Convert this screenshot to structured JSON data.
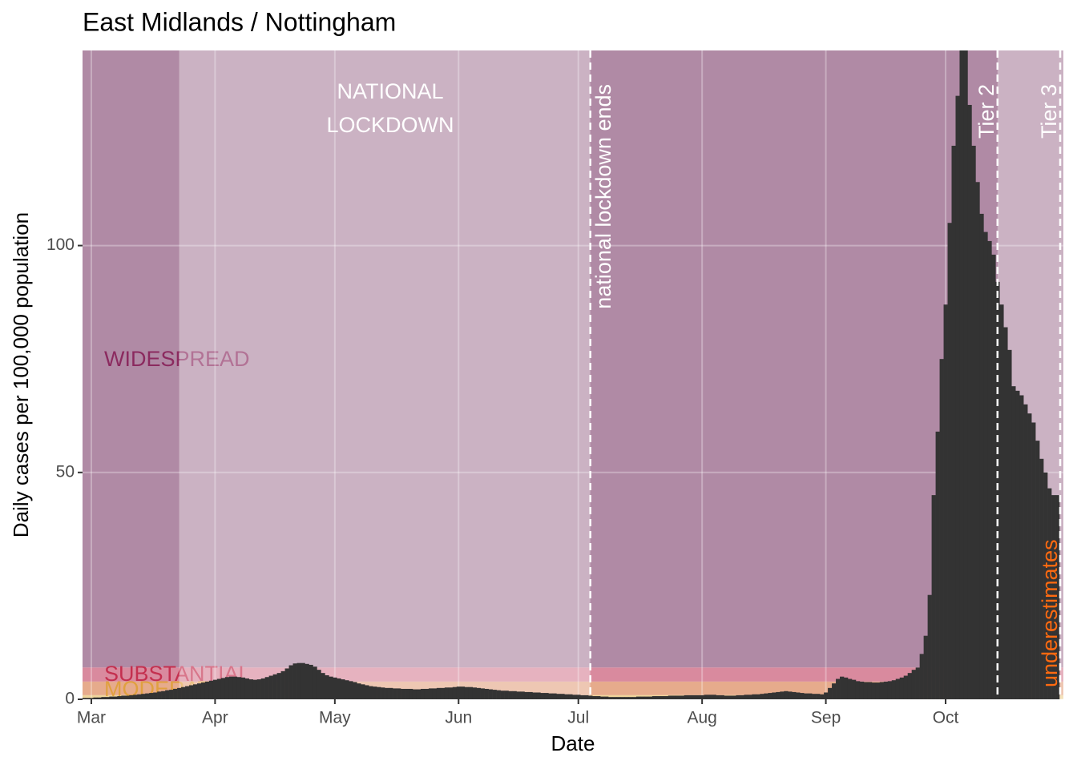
{
  "chart_data": {
    "type": "bar",
    "title": "East Midlands / Nottingham",
    "x_label": "Date",
    "y_label": "Daily cases per 100,000 population",
    "color": "#333333",
    "xlim": [
      -2.2,
      243.5
    ],
    "ylim": [
      0,
      143
    ],
    "yticks": [
      0,
      50,
      100
    ],
    "xticks": [
      {
        "value": 0,
        "label": "Mar"
      },
      {
        "value": 31,
        "label": "Apr"
      },
      {
        "value": 61,
        "label": "May"
      },
      {
        "value": 92,
        "label": "Jun"
      },
      {
        "value": 122,
        "label": "Jul"
      },
      {
        "value": 153,
        "label": "Aug"
      },
      {
        "value": 184,
        "label": "Sep"
      },
      {
        "value": 214,
        "label": "Oct"
      }
    ],
    "grid": true,
    "bands": [
      {
        "name": "WIDESPREAD",
        "from": 7,
        "to": 143,
        "color": "#b08aa5",
        "label_color": "#8b2a5f"
      },
      {
        "name": "SUBSTANTIAL",
        "from": 3.9,
        "to": 7,
        "color": "#d98a9e",
        "label_color": "#c4304f"
      },
      {
        "name": "MODERATE",
        "from": 0.9,
        "to": 3.9,
        "color": "#e6ab8c",
        "label_color": "#e0a040"
      },
      {
        "from": 0,
        "to": 0.9,
        "color": "#eed49a"
      }
    ],
    "light_periods": [
      [
        22,
        125
      ],
      [
        227,
        243.5
      ]
    ],
    "lockdown_label": [
      "NATIONAL",
      "LOCKDOWN"
    ],
    "events": [
      {
        "x": 125,
        "label": "national lockdown ends"
      },
      {
        "x": 227,
        "label": "Tier 2"
      },
      {
        "x": 242.7,
        "label": "Tier 3"
      }
    ],
    "underestimates_label": "underestimates",
    "underestimates_color": "#ff6a10",
    "x": [
      -2,
      -1,
      0,
      1,
      2,
      3,
      4,
      5,
      6,
      7,
      8,
      9,
      10,
      11,
      12,
      13,
      14,
      15,
      16,
      17,
      18,
      19,
      20,
      21,
      22,
      23,
      24,
      25,
      26,
      27,
      28,
      29,
      30,
      31,
      32,
      33,
      34,
      35,
      36,
      37,
      38,
      39,
      40,
      41,
      42,
      43,
      44,
      45,
      46,
      47,
      48,
      49,
      50,
      51,
      52,
      53,
      54,
      55,
      56,
      57,
      58,
      59,
      60,
      61,
      62,
      63,
      64,
      65,
      66,
      67,
      68,
      69,
      70,
      71,
      72,
      73,
      74,
      75,
      76,
      77,
      78,
      79,
      80,
      81,
      82,
      83,
      84,
      85,
      86,
      87,
      88,
      89,
      90,
      91,
      92,
      93,
      94,
      95,
      96,
      97,
      98,
      99,
      100,
      101,
      102,
      103,
      104,
      105,
      106,
      107,
      108,
      109,
      110,
      111,
      112,
      113,
      114,
      115,
      116,
      117,
      118,
      119,
      120,
      121,
      122,
      123,
      124,
      125,
      126,
      127,
      128,
      129,
      130,
      131,
      132,
      133,
      134,
      135,
      136,
      137,
      138,
      139,
      140,
      141,
      142,
      143,
      144,
      145,
      146,
      147,
      148,
      149,
      150,
      151,
      152,
      153,
      154,
      155,
      156,
      157,
      158,
      159,
      160,
      161,
      162,
      163,
      164,
      165,
      166,
      167,
      168,
      169,
      170,
      171,
      172,
      173,
      174,
      175,
      176,
      177,
      178,
      179,
      180,
      181,
      182,
      183,
      184,
      185,
      186,
      187,
      188,
      189,
      190,
      191,
      192,
      193,
      194,
      195,
      196,
      197,
      198,
      199,
      200,
      201,
      202,
      203,
      204,
      205,
      206,
      207,
      208,
      209,
      210,
      211,
      212,
      213,
      214,
      215,
      216,
      217,
      218,
      219,
      220,
      221,
      222,
      223,
      224,
      225,
      226,
      227,
      228,
      229,
      230,
      231,
      232,
      233,
      234,
      235,
      236,
      237,
      238,
      239,
      240,
      241,
      242
    ],
    "values": [
      0.3,
      0.3,
      0.3,
      0.4,
      0.4,
      0.5,
      0.5,
      0.6,
      0.6,
      0.7,
      0.8,
      0.8,
      0.9,
      1.0,
      1.1,
      1.2,
      1.3,
      1.4,
      1.5,
      1.7,
      1.8,
      2.0,
      2.1,
      2.3,
      2.5,
      2.7,
      2.9,
      3.1,
      3.3,
      3.5,
      3.7,
      3.9,
      4.1,
      4.3,
      4.5,
      4.7,
      4.9,
      5.0,
      5.0,
      4.9,
      4.8,
      4.6,
      4.4,
      4.3,
      4.4,
      4.6,
      4.9,
      5.2,
      5.5,
      5.8,
      6.2,
      6.8,
      7.5,
      7.9,
      8.0,
      8.0,
      7.8,
      7.6,
      7.2,
      6.5,
      5.8,
      5.3,
      5.0,
      4.8,
      4.6,
      4.4,
      4.2,
      4.0,
      3.8,
      3.5,
      3.3,
      3.1,
      2.9,
      2.8,
      2.7,
      2.6,
      2.5,
      2.5,
      2.4,
      2.4,
      2.3,
      2.3,
      2.3,
      2.2,
      2.2,
      2.3,
      2.3,
      2.4,
      2.4,
      2.5,
      2.5,
      2.6,
      2.6,
      2.7,
      2.8,
      2.8,
      2.7,
      2.7,
      2.6,
      2.5,
      2.4,
      2.3,
      2.2,
      2.1,
      2.0,
      1.9,
      1.9,
      1.8,
      1.8,
      1.7,
      1.7,
      1.6,
      1.6,
      1.5,
      1.5,
      1.4,
      1.4,
      1.3,
      1.3,
      1.2,
      1.2,
      1.1,
      1.1,
      1.0,
      1.0,
      0.9,
      0.9,
      0.8,
      0.7,
      0.7,
      0.6,
      0.6,
      0.5,
      0.5,
      0.5,
      0.5,
      0.5,
      0.5,
      0.5,
      0.6,
      0.6,
      0.6,
      0.6,
      0.7,
      0.7,
      0.7,
      0.7,
      0.8,
      0.8,
      0.8,
      0.8,
      0.9,
      0.9,
      0.9,
      0.9,
      0.9,
      1.0,
      1.0,
      1.0,
      0.9,
      0.9,
      0.8,
      0.8,
      0.8,
      0.9,
      0.9,
      1.0,
      1.0,
      1.1,
      1.1,
      1.2,
      1.3,
      1.4,
      1.5,
      1.6,
      1.7,
      1.8,
      1.7,
      1.6,
      1.5,
      1.4,
      1.3,
      1.3,
      1.2,
      1.2,
      1.1,
      1.5,
      2.5,
      3.5,
      4.5,
      5.0,
      4.8,
      4.5,
      4.3,
      4.0,
      3.9,
      3.8,
      3.8,
      3.7,
      3.7,
      3.8,
      3.9,
      4.0,
      4.2,
      4.5,
      4.8,
      5.2,
      5.8,
      6.5,
      7.0,
      10,
      14,
      23,
      45,
      59,
      75,
      87,
      105,
      122,
      133,
      143,
      143,
      131,
      122,
      114,
      107,
      103,
      101,
      98,
      92,
      87,
      82,
      77,
      69,
      68,
      67,
      65,
      63,
      61,
      57,
      53,
      50,
      46.5,
      45,
      45
    ]
  }
}
